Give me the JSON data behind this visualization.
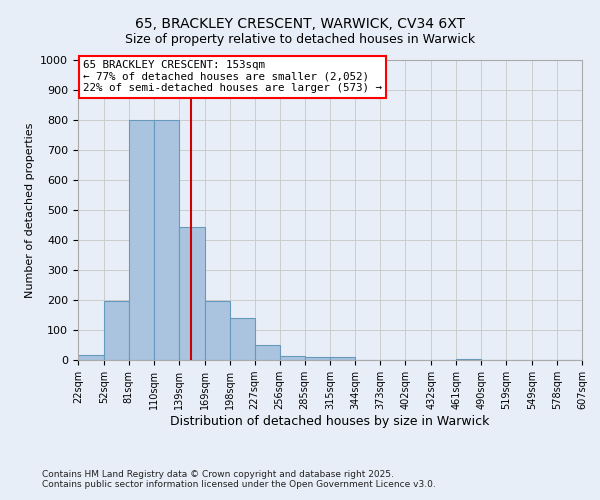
{
  "title1": "65, BRACKLEY CRESCENT, WARWICK, CV34 6XT",
  "title2": "Size of property relative to detached houses in Warwick",
  "xlabel": "Distribution of detached houses by size in Warwick",
  "ylabel": "Number of detached properties",
  "bin_edges": [
    22,
    52,
    81,
    110,
    139,
    169,
    198,
    227,
    256,
    285,
    315,
    344,
    373,
    402,
    432,
    461,
    490,
    519,
    549,
    578,
    607
  ],
  "bar_heights": [
    18,
    196,
    800,
    800,
    445,
    196,
    140,
    50,
    13,
    10,
    10,
    0,
    0,
    0,
    0,
    5,
    0,
    0,
    0,
    0
  ],
  "bar_color": "#aac4e0",
  "bar_edge_color": "#6699bb",
  "red_line_x": 153,
  "red_line_color": "#cc0000",
  "ylim": [
    0,
    1000
  ],
  "yticks": [
    0,
    100,
    200,
    300,
    400,
    500,
    600,
    700,
    800,
    900,
    1000
  ],
  "annotation_text": "65 BRACKLEY CRESCENT: 153sqm\n← 77% of detached houses are smaller (2,052)\n22% of semi-detached houses are larger (573) →",
  "grid_color": "#cccccc",
  "background_color": "#e8eef8",
  "footer1": "Contains HM Land Registry data © Crown copyright and database right 2025.",
  "footer2": "Contains public sector information licensed under the Open Government Licence v3.0."
}
